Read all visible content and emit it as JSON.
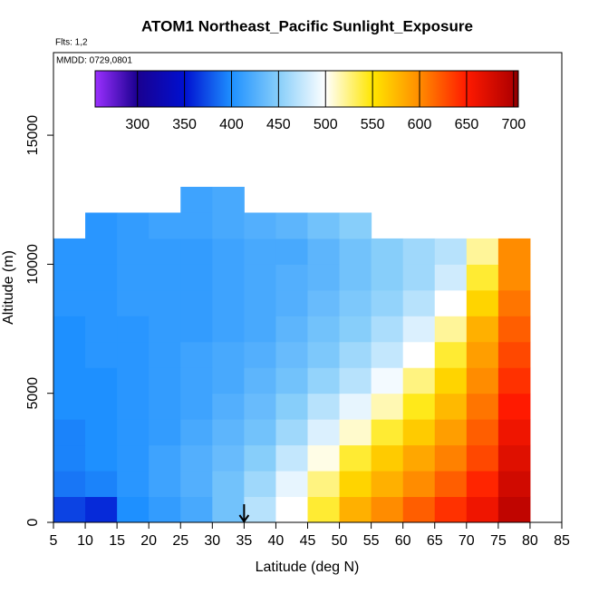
{
  "chart_data": {
    "type": "heatmap",
    "title": "ATOM1 Northeast_Pacific Sunlight_Exposure",
    "annotations": [
      "Flts: 1,2",
      "MMDD: 0729,0801"
    ],
    "x_label": "Latitude (deg N)",
    "y_label": "Altitude (m)",
    "xlim": [
      5,
      85
    ],
    "ylim": [
      0,
      18200
    ],
    "xticks": [
      5,
      10,
      15,
      20,
      25,
      30,
      35,
      40,
      45,
      50,
      55,
      60,
      65,
      70,
      75,
      80,
      85
    ],
    "yticks": [
      0,
      5000,
      10000,
      15000
    ],
    "x_bins": [
      5,
      10,
      15,
      20,
      25,
      30,
      35,
      40,
      45,
      50,
      55,
      60,
      65,
      70,
      75,
      80
    ],
    "y_bins": [
      0,
      1000,
      2000,
      3000,
      4000,
      5000,
      6000,
      7000,
      8000,
      9000,
      10000,
      11000,
      12000,
      13000
    ],
    "z": [
      [
        370,
        360,
        400,
        410,
        420,
        440,
        470,
        500,
        540,
        580,
        600,
        620,
        640,
        660,
        690
      ],
      [
        390,
        395,
        405,
        415,
        425,
        440,
        460,
        490,
        525,
        560,
        580,
        600,
        620,
        645,
        680
      ],
      [
        395,
        400,
        405,
        415,
        425,
        435,
        450,
        475,
        505,
        540,
        565,
        585,
        605,
        630,
        670
      ],
      [
        395,
        400,
        405,
        410,
        420,
        430,
        440,
        460,
        485,
        510,
        540,
        565,
        590,
        620,
        660
      ],
      [
        400,
        400,
        405,
        410,
        415,
        425,
        435,
        450,
        470,
        490,
        515,
        545,
        575,
        610,
        650
      ],
      [
        400,
        400,
        405,
        410,
        415,
        420,
        430,
        440,
        455,
        470,
        495,
        525,
        560,
        600,
        640
      ],
      [
        400,
        405,
        405,
        410,
        415,
        420,
        425,
        435,
        445,
        460,
        475,
        500,
        540,
        590,
        630
      ],
      [
        400,
        405,
        405,
        410,
        410,
        415,
        420,
        430,
        440,
        450,
        465,
        485,
        520,
        580,
        620
      ],
      [
        405,
        405,
        410,
        410,
        410,
        415,
        420,
        425,
        435,
        445,
        455,
        470,
        500,
        560,
        610
      ],
      [
        405,
        405,
        410,
        410,
        410,
        415,
        420,
        425,
        430,
        440,
        450,
        460,
        480,
        540,
        600
      ],
      [
        405,
        405,
        410,
        410,
        410,
        415,
        420,
        420,
        430,
        440,
        450,
        460,
        470,
        520,
        600
      ],
      [
        null,
        405,
        410,
        415,
        415,
        420,
        425,
        430,
        440,
        450,
        null,
        null,
        null,
        null,
        null
      ],
      [
        null,
        null,
        null,
        null,
        415,
        420,
        null,
        null,
        null,
        null,
        null,
        null,
        null,
        null,
        null
      ]
    ],
    "marker_latitude": 35,
    "colorbar": {
      "lim": [
        255,
        705
      ],
      "ticks": [
        300,
        350,
        400,
        450,
        500,
        550,
        600,
        650,
        700
      ],
      "stops": [
        {
          "value": 255,
          "color": "#9b30ff"
        },
        {
          "value": 300,
          "color": "#1a0090"
        },
        {
          "value": 350,
          "color": "#0010d0"
        },
        {
          "value": 400,
          "color": "#1e90ff"
        },
        {
          "value": 450,
          "color": "#87cefa"
        },
        {
          "value": 500,
          "color": "#ffffff"
        },
        {
          "value": 550,
          "color": "#ffe600"
        },
        {
          "value": 600,
          "color": "#ff8c00"
        },
        {
          "value": 650,
          "color": "#ff1a00"
        },
        {
          "value": 700,
          "color": "#b00000"
        },
        {
          "value": 705,
          "color": "#7a0000"
        }
      ]
    }
  }
}
